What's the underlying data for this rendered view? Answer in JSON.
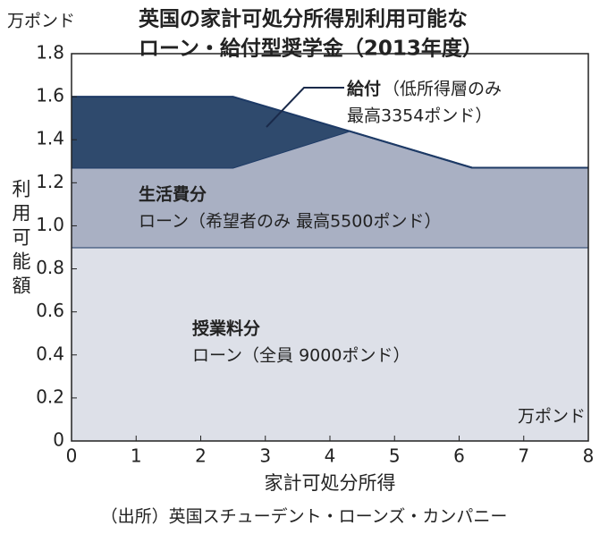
{
  "chart_data": {
    "type": "stacked_area",
    "title_lines": [
      "英国の家計可処分所得別利用可能な",
      "ローン・給付型奨学金（2013年度）"
    ],
    "y_unit": "万ポンド",
    "y_label": "利用可能額",
    "x_label": "家計可処分所得",
    "x_unit": "万ポンド",
    "source": "（出所）英国スチューデント・ローンズ・カンパニー",
    "x": [
      0,
      2.5,
      4.3,
      6.2,
      8
    ],
    "series": [
      {
        "name": "授業料分",
        "color": "#dde0e8",
        "values": [
          0.9,
          0.9,
          0.9,
          0.9,
          0.9
        ],
        "note": "ローン（全員 9000ポンド）"
      },
      {
        "name": "生活費分",
        "color": "#a9b0c3",
        "values": [
          0.37,
          0.37,
          0.54,
          0.37,
          0.37
        ],
        "note": "ローン（希望者のみ 最高5500ポンド）"
      },
      {
        "name": "給付",
        "color": "#2f4a6d",
        "values": [
          0.33,
          0.33,
          0,
          0,
          0
        ],
        "note": "（低所得層のみ",
        "note2": "最高3354ポンド）"
      }
    ],
    "xlim": [
      0,
      8
    ],
    "xticks": [
      0,
      1,
      2,
      3,
      4,
      5,
      6,
      7,
      8
    ],
    "ylim": [
      0,
      1.8
    ],
    "yticks": [
      0,
      0.2,
      0.4,
      0.6,
      0.8,
      {
        "value": 1,
        "label": "1.0"
      },
      1.2,
      1.4,
      1.6,
      1.8
    ]
  }
}
